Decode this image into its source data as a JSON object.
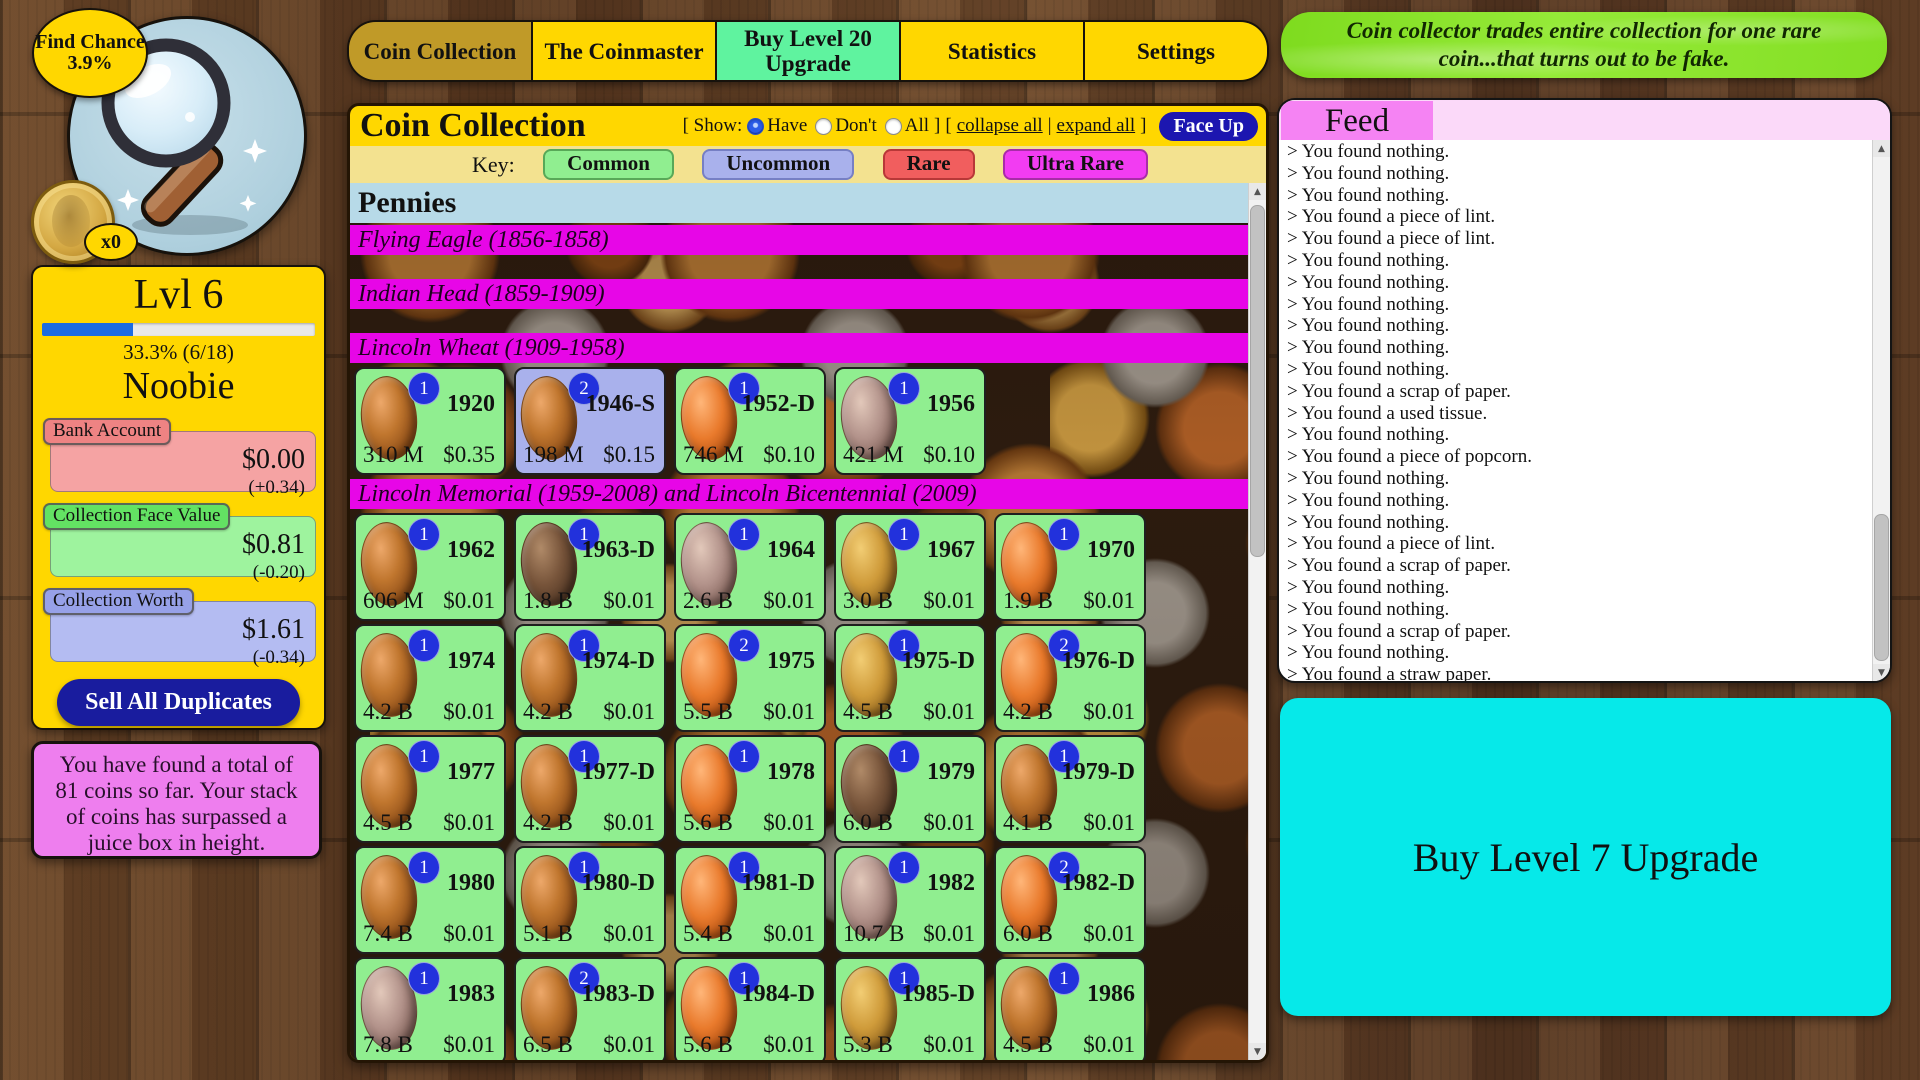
{
  "find_chance": {
    "label": "Find Chance",
    "value": "3.9%"
  },
  "coin_counter": "x0",
  "level_panel": {
    "title": "Lvl 6",
    "progress_pct": 33.3,
    "progress_text": "33.3% (6/18)",
    "rank": "Noobie",
    "stats": [
      {
        "label": "Bank Account",
        "value": "$0.00",
        "delta": "(+0.34)",
        "box": "#f5a3a3",
        "chip": "#ee8383"
      },
      {
        "label": "Collection Face Value",
        "value": "$0.81",
        "delta": "(-0.20)",
        "box": "#9ef39e",
        "chip": "#63e263"
      },
      {
        "label": "Collection Worth",
        "value": "$1.61",
        "delta": "(-0.34)",
        "box": "#b4bcf2",
        "chip": "#97a1e8"
      }
    ],
    "sell_button": "Sell All Duplicates"
  },
  "info_box": "You have found a total of 81 coins so far. Your stack of coins has surpassed a juice box in height.",
  "tabs": [
    {
      "label": "Coin Collection",
      "active": true
    },
    {
      "label": "The Coinmaster"
    },
    {
      "label": "Buy Level 20 Upgrade",
      "highlight": true
    },
    {
      "label": "Statistics"
    },
    {
      "label": "Settings"
    }
  ],
  "collection": {
    "title": "Coin Collection",
    "show_open": "[ Show:",
    "show_close": "]",
    "links_open": "[",
    "links_sep": "|",
    "links_close": "]",
    "show_options": [
      {
        "label": "Have",
        "selected": true
      },
      {
        "label": "Don't",
        "selected": false
      },
      {
        "label": "All",
        "selected": false
      }
    ],
    "collapse_link": "collapse all",
    "expand_link": "expand all",
    "face_up_button": "Face Up",
    "key_label": "Key:",
    "rarities": [
      {
        "label": "Common",
        "color": "#90ee90",
        "border": "#58a858"
      },
      {
        "label": "Uncommon",
        "color": "#a9b1ec",
        "border": "#767fc4"
      },
      {
        "label": "Rare",
        "color": "#f15e5e",
        "border": "#b83838"
      },
      {
        "label": "Ultra Rare",
        "color": "#f23cf2",
        "border": "#a82ca8"
      }
    ],
    "section": "Pennies",
    "subsections": [
      {
        "title": "Flying Eagle (1856-1858)",
        "coins": []
      },
      {
        "title": "Indian Head (1859-1909)",
        "coins": []
      },
      {
        "title": "Lincoln Wheat (1909-1958)",
        "coins": [
          {
            "year": "1920",
            "count": 1,
            "mintage": "310 M",
            "value": "$0.35",
            "rarity": "common",
            "tone": "copper"
          },
          {
            "year": "1946-S",
            "count": 2,
            "mintage": "198 M",
            "value": "$0.15",
            "rarity": "uncommon",
            "tone": "copper"
          },
          {
            "year": "1952-D",
            "count": 1,
            "mintage": "746 M",
            "value": "$0.10",
            "rarity": "common",
            "tone": "bright"
          },
          {
            "year": "1956",
            "count": 1,
            "mintage": "421 M",
            "value": "$0.10",
            "rarity": "common",
            "tone": "gray"
          }
        ]
      },
      {
        "title": "Lincoln Memorial (1959-2008) and Lincoln Bicentennial (2009)",
        "coins": [
          {
            "year": "1962",
            "count": 1,
            "mintage": "606 M",
            "value": "$0.01",
            "rarity": "common",
            "tone": "copper"
          },
          {
            "year": "1963-D",
            "count": 1,
            "mintage": "1.8 B",
            "value": "$0.01",
            "rarity": "common",
            "tone": "dark"
          },
          {
            "year": "1964",
            "count": 1,
            "mintage": "2.6 B",
            "value": "$0.01",
            "rarity": "common",
            "tone": "gray"
          },
          {
            "year": "1967",
            "count": 1,
            "mintage": "3.0 B",
            "value": "$0.01",
            "rarity": "common",
            "tone": "gold"
          },
          {
            "year": "1970",
            "count": 1,
            "mintage": "1.9 B",
            "value": "$0.01",
            "rarity": "common",
            "tone": "bright"
          },
          {
            "year": "1974",
            "count": 1,
            "mintage": "4.2 B",
            "value": "$0.01",
            "rarity": "common",
            "tone": "copper"
          },
          {
            "year": "1974-D",
            "count": 1,
            "mintage": "4.2 B",
            "value": "$0.01",
            "rarity": "common",
            "tone": "copper"
          },
          {
            "year": "1975",
            "count": 2,
            "mintage": "5.5 B",
            "value": "$0.01",
            "rarity": "common",
            "tone": "bright"
          },
          {
            "year": "1975-D",
            "count": 1,
            "mintage": "4.5 B",
            "value": "$0.01",
            "rarity": "common",
            "tone": "gold"
          },
          {
            "year": "1976-D",
            "count": 2,
            "mintage": "4.2 B",
            "value": "$0.01",
            "rarity": "common",
            "tone": "bright"
          },
          {
            "year": "1977",
            "count": 1,
            "mintage": "4.5 B",
            "value": "$0.01",
            "rarity": "common",
            "tone": "copper"
          },
          {
            "year": "1977-D",
            "count": 1,
            "mintage": "4.2 B",
            "value": "$0.01",
            "rarity": "common",
            "tone": "copper"
          },
          {
            "year": "1978",
            "count": 1,
            "mintage": "5.6 B",
            "value": "$0.01",
            "rarity": "common",
            "tone": "bright"
          },
          {
            "year": "1979",
            "count": 1,
            "mintage": "6.0 B",
            "value": "$0.01",
            "rarity": "common",
            "tone": "dark"
          },
          {
            "year": "1979-D",
            "count": 1,
            "mintage": "4.1 B",
            "value": "$0.01",
            "rarity": "common",
            "tone": "copper"
          },
          {
            "year": "1980",
            "count": 1,
            "mintage": "7.4 B",
            "value": "$0.01",
            "rarity": "common",
            "tone": "copper"
          },
          {
            "year": "1980-D",
            "count": 1,
            "mintage": "5.1 B",
            "value": "$0.01",
            "rarity": "common",
            "tone": "copper"
          },
          {
            "year": "1981-D",
            "count": 1,
            "mintage": "5.4 B",
            "value": "$0.01",
            "rarity": "common",
            "tone": "bright"
          },
          {
            "year": "1982",
            "count": 1,
            "mintage": "10.7 B",
            "value": "$0.01",
            "rarity": "common",
            "tone": "gray"
          },
          {
            "year": "1982-D",
            "count": 2,
            "mintage": "6.0 B",
            "value": "$0.01",
            "rarity": "common",
            "tone": "bright"
          },
          {
            "year": "1983",
            "count": 1,
            "mintage": "7.8 B",
            "value": "$0.01",
            "rarity": "common",
            "tone": "gray"
          },
          {
            "year": "1983-D",
            "count": 2,
            "mintage": "6.5 B",
            "value": "$0.01",
            "rarity": "common",
            "tone": "copper"
          },
          {
            "year": "1984-D",
            "count": 1,
            "mintage": "5.6 B",
            "value": "$0.01",
            "rarity": "common",
            "tone": "bright"
          },
          {
            "year": "1985-D",
            "count": 1,
            "mintage": "5.3 B",
            "value": "$0.01",
            "rarity": "common",
            "tone": "gold"
          },
          {
            "year": "1986",
            "count": 1,
            "mintage": "4.5 B",
            "value": "$0.01",
            "rarity": "common",
            "tone": "copper"
          }
        ]
      }
    ]
  },
  "ticker": "Coin collector trades entire collection for one rare coin...that turns out to be fake.",
  "feed": {
    "title": "Feed",
    "item_prefix": "> ",
    "items": [
      "You found nothing.",
      "You found nothing.",
      "You found nothing.",
      "You found a piece of lint.",
      "You found a piece of lint.",
      "You found nothing.",
      "You found nothing.",
      "You found nothing.",
      "You found nothing.",
      "You found nothing.",
      "You found nothing.",
      "You found a scrap of paper.",
      "You found a used tissue.",
      "You found nothing.",
      "You found a piece of popcorn.",
      "You found nothing.",
      "You found nothing.",
      "You found nothing.",
      "You found a piece of lint.",
      "You found a scrap of paper.",
      "You found nothing.",
      "You found nothing.",
      "You found a scrap of paper.",
      "You found nothing.",
      "You found a straw paper."
    ]
  },
  "buy_upgrade_button": "Buy Level 7 Upgrade",
  "colors": {
    "gold": "#ffd700",
    "active_tab": "#c09a28",
    "mint_tab": "#5ff39f",
    "magenta_section": "#e706e7",
    "pennies_blue": "#b7dae8",
    "navy_button": "#191c9e",
    "cyan_button": "#06e9e9",
    "ticker_green": "#8ae02c",
    "feed_pink": "#f583f3",
    "badge_blue": "#2231dc"
  }
}
